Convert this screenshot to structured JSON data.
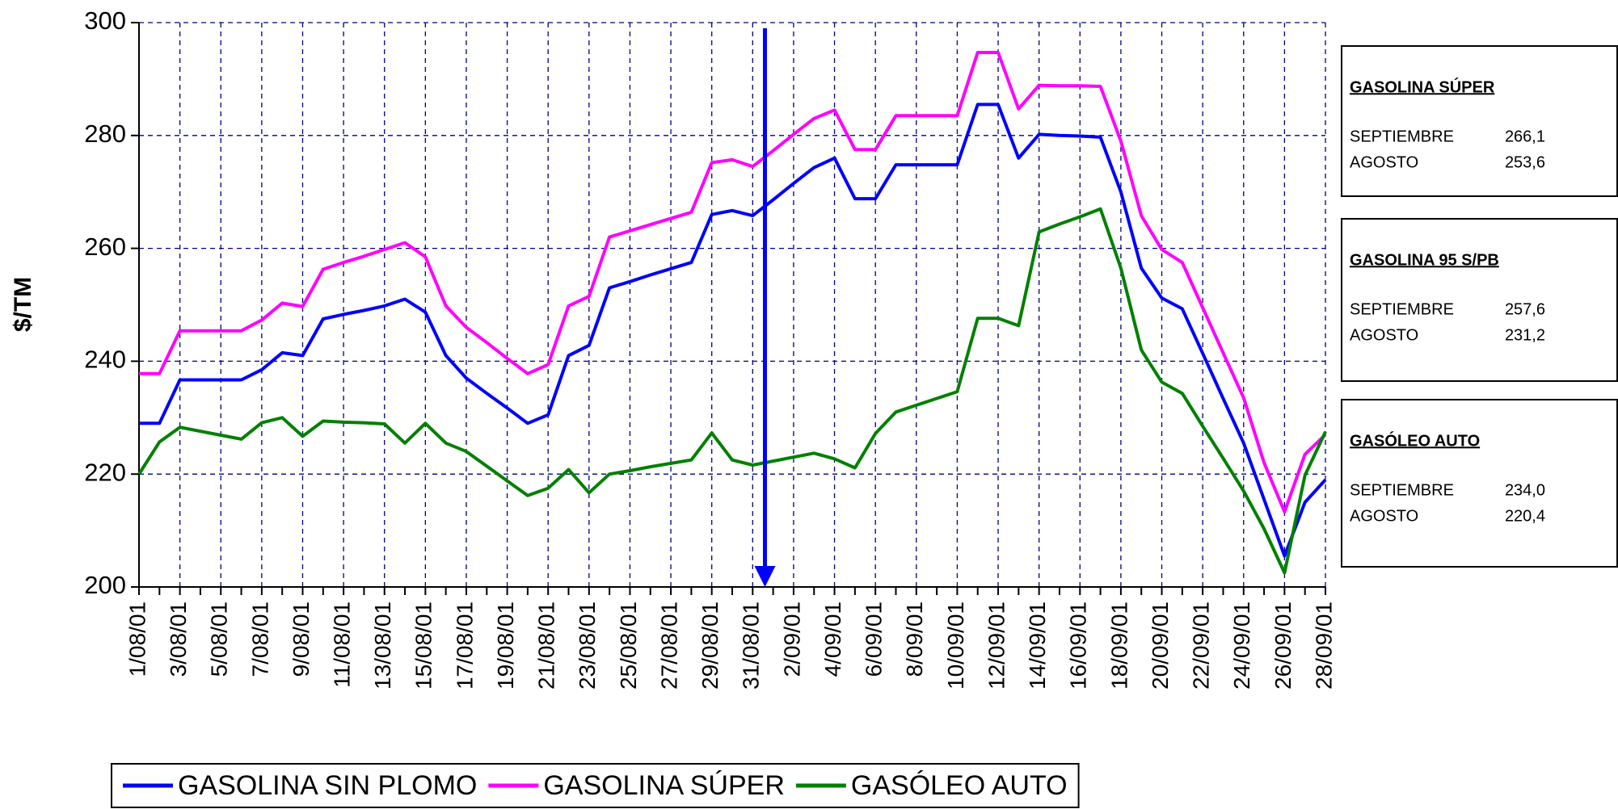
{
  "chart_data": {
    "type": "line",
    "y_label": "$/TM",
    "categories": [
      "1/08/01",
      null,
      "3/08/01",
      null,
      "5/08/01",
      null,
      "7/08/01",
      null,
      "9/08/01",
      null,
      "11/08/01",
      null,
      "13/08/01",
      null,
      "15/08/01",
      null,
      "17/08/01",
      null,
      "19/08/01",
      null,
      "21/08/01",
      null,
      "23/08/01",
      null,
      "25/08/01",
      null,
      "27/08/01",
      null,
      "29/08/01",
      null,
      "31/08/01",
      null,
      "2/09/01",
      null,
      "4/09/01",
      null,
      "6/09/01",
      null,
      "8/09/01",
      null,
      "10/09/01",
      null,
      "12/09/01",
      null,
      "14/09/01",
      null,
      "16/09/01",
      null,
      "18/09/01",
      null,
      "20/09/01",
      null,
      "22/09/01",
      null,
      "24/09/01",
      null,
      "26/09/01",
      null,
      "28/09/01"
    ],
    "series": [
      {
        "name": "GASOLINA SIN PLOMO",
        "color": "#0000ff",
        "values": [
          229,
          229,
          236.7,
          236.7,
          236.7,
          236.7,
          238.5,
          241.5,
          241,
          247.5,
          248.3,
          249,
          249.8,
          251,
          248.7,
          241,
          237,
          234.3,
          231.7,
          229,
          230.5,
          241,
          242.8,
          253,
          254.1,
          255.3,
          256.4,
          257.5,
          266,
          266.7,
          265.8,
          268.6,
          271.5,
          274.3,
          276,
          268.8,
          268.8,
          274.8,
          274.8,
          274.8,
          274.8,
          285.5,
          285.5,
          276,
          280.2,
          280,
          279.9,
          279.7,
          270,
          256.5,
          251.2,
          249.3,
          241.4,
          233.4,
          225.5,
          215.5,
          205.5,
          215,
          219
        ]
      },
      {
        "name": "GASOLINA SÚPER",
        "color": "#ff00ff",
        "values": [
          237.8,
          237.8,
          245.4,
          245.4,
          245.4,
          245.4,
          247.3,
          250.3,
          249.7,
          256.3,
          257.5,
          258.6,
          259.8,
          261,
          258.5,
          249.8,
          246,
          243.3,
          240.5,
          237.8,
          239.4,
          249.8,
          251.5,
          262,
          263.1,
          264.2,
          265.3,
          266.4,
          275.2,
          275.7,
          274.5,
          277.3,
          280.2,
          283,
          284.5,
          277.5,
          277.5,
          283.5,
          283.5,
          283.5,
          283.5,
          294.7,
          294.7,
          284.7,
          288.9,
          288.8,
          288.8,
          288.7,
          279,
          265.8,
          259.8,
          257.5,
          249.5,
          241.5,
          233.5,
          222,
          213.3,
          223.5,
          227
        ]
      },
      {
        "name": "GASÓLEO AUTO",
        "color": "#008000",
        "values": [
          220,
          225.7,
          228.3,
          227.6,
          226.9,
          226.2,
          229.1,
          230,
          226.7,
          229.4,
          229.2,
          229.1,
          228.9,
          225.5,
          229,
          225.5,
          224,
          221.4,
          218.8,
          216.2,
          217.5,
          220.8,
          216.7,
          220,
          220.6,
          221.3,
          221.9,
          222.5,
          227.3,
          222.5,
          221.6,
          222.3,
          223,
          223.7,
          222.7,
          221.1,
          227.2,
          231,
          232.2,
          233.4,
          234.6,
          247.6,
          247.6,
          246.3,
          262.9,
          264.3,
          265.6,
          267,
          256.5,
          242,
          236.3,
          234.3,
          228.5,
          222.8,
          217,
          210.3,
          202.5,
          219.8,
          227.5
        ]
      }
    ],
    "ylim": [
      200,
      300
    ],
    "yticks": [
      200,
      220,
      240,
      260,
      280,
      300
    ],
    "grid": true,
    "legend": "bottom",
    "info_boxes": [
      {
        "title": "GASOLINA SÚPER",
        "rows": [
          [
            "SEPTIEMBRE",
            "266,1"
          ],
          [
            "AGOSTO",
            "253,6"
          ]
        ]
      },
      {
        "title": "GASOLINA  95 S/PB",
        "rows": [
          [
            "SEPTIEMBRE",
            "257,6"
          ],
          [
            "AGOSTO",
            "231,2"
          ]
        ]
      },
      {
        "title": "GASÓLEO  AUTO",
        "rows": [
          [
            "SEPTIEMBRE",
            "234,0"
          ],
          [
            "AGOSTO",
            "220,4"
          ]
        ]
      }
    ]
  }
}
